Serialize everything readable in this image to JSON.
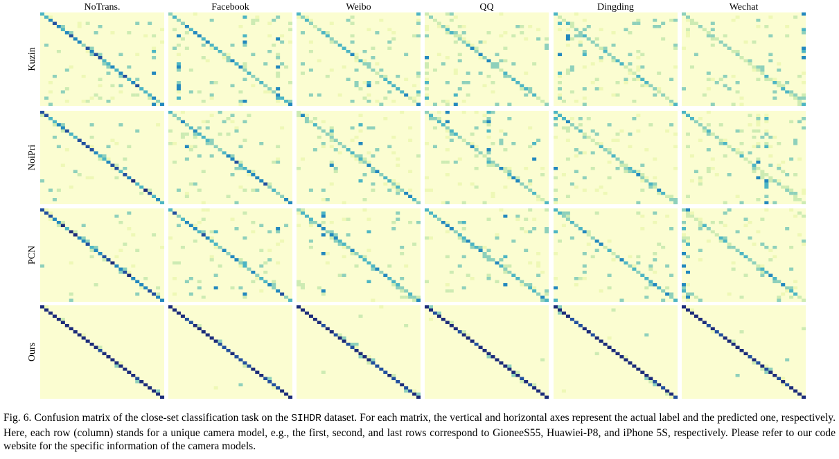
{
  "figure": {
    "columns": [
      "NoTrans.",
      "Facebook",
      "Weibo",
      "QQ",
      "Dingding",
      "Wechat"
    ],
    "rows": [
      "Kuzin",
      "NoiPri",
      "PCN",
      "Ours"
    ],
    "classes": 30,
    "colormap": [
      "#fbfdd1",
      "#eef8b6",
      "#cdebb3",
      "#8ed0bb",
      "#4db5c3",
      "#2388be",
      "#22509e",
      "#1c2c7a"
    ]
  },
  "caption": {
    "label": "Fig. 6.",
    "text_before": "Confusion matrix of the close-set classification task on the",
    "dataset": "SIHDR",
    "text_after": "dataset. For each matrix, the vertical and horizontal axes represent the actual label and the predicted one, respectively. Here, each row (column) stands for a unique camera model, e.g., the first, second, and last rows correspond to GioneeS55, Huawiei-P8, and iPhone 5S, respectively. Please refer to our code website for the specific information of the camera models."
  }
}
